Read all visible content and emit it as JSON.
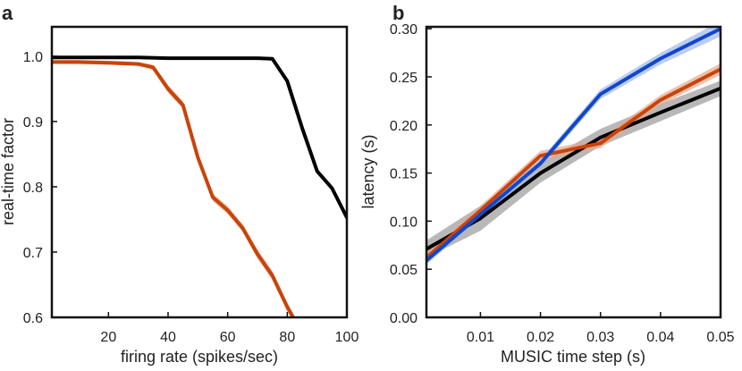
{
  "chart_data": [
    {
      "panel_label": "a",
      "type": "line",
      "xlabel": "firing rate (spikes/sec)",
      "ylabel": "real-time factor",
      "xlim": [
        1,
        100
      ],
      "ylim": [
        0.6,
        1.045
      ],
      "xticks": [
        20,
        40,
        60,
        80,
        100
      ],
      "yticks": [
        0.6,
        0.7,
        0.8,
        0.9,
        1.0
      ],
      "xtick_labels": [
        "20",
        "40",
        "60",
        "80",
        "100"
      ],
      "ytick_labels": [
        "0.6",
        "0.7",
        "0.8",
        "0.9",
        "1.0"
      ],
      "grid": false,
      "series": [
        {
          "name": "black",
          "color": "#000000",
          "band_color": "#888888",
          "x": [
            1,
            10,
            20,
            30,
            40,
            50,
            60,
            70,
            75,
            80,
            85,
            90,
            95,
            100
          ],
          "y": [
            0.998,
            0.998,
            0.998,
            0.998,
            0.997,
            0.997,
            0.997,
            0.997,
            0.996,
            0.962,
            0.89,
            0.824,
            0.798,
            0.753
          ],
          "err": [
            0.002,
            0.002,
            0.002,
            0.002,
            0.002,
            0.002,
            0.002,
            0.002,
            0.002,
            0.004,
            0.005,
            0.004,
            0.004,
            0.004
          ]
        },
        {
          "name": "orange",
          "color": "#c8440a",
          "band_color": "#e8a58a",
          "x": [
            1,
            10,
            20,
            30,
            35,
            40,
            45,
            50,
            55,
            60,
            65,
            70,
            75,
            80,
            82
          ],
          "y": [
            0.991,
            0.991,
            0.99,
            0.988,
            0.983,
            0.95,
            0.925,
            0.845,
            0.784,
            0.764,
            0.737,
            0.697,
            0.664,
            0.616,
            0.6
          ],
          "err": [
            0.003,
            0.003,
            0.003,
            0.003,
            0.004,
            0.006,
            0.006,
            0.006,
            0.006,
            0.006,
            0.006,
            0.007,
            0.007,
            0.007,
            0.006
          ]
        }
      ]
    },
    {
      "panel_label": "b",
      "type": "line",
      "xlabel": "MUSIC time step (s)",
      "ylabel": "latency (s)",
      "xlim": [
        0.001,
        0.05
      ],
      "ylim": [
        0.0,
        0.302
      ],
      "xticks": [
        0.01,
        0.02,
        0.03,
        0.04,
        0.05
      ],
      "yticks": [
        0.0,
        0.05,
        0.1,
        0.15,
        0.2,
        0.25,
        0.3
      ],
      "xtick_labels": [
        "0.01",
        "0.02",
        "0.03",
        "0.04",
        "0.05"
      ],
      "ytick_labels": [
        "0.00",
        "0.05",
        "0.10",
        "0.15",
        "0.20",
        "0.25",
        "0.30"
      ],
      "grid": false,
      "series": [
        {
          "name": "black",
          "color": "#000000",
          "band_color": "#9a9a9a",
          "x": [
            0.001,
            0.01,
            0.02,
            0.03,
            0.04,
            0.05
          ],
          "y": [
            0.071,
            0.103,
            0.15,
            0.187,
            0.213,
            0.238
          ],
          "err": [
            0.009,
            0.013,
            0.01,
            0.009,
            0.009,
            0.008
          ]
        },
        {
          "name": "orange",
          "color": "#c8440a",
          "band_color": "#e8a58a",
          "x": [
            0.001,
            0.01,
            0.02,
            0.03,
            0.04,
            0.05
          ],
          "y": [
            0.062,
            0.111,
            0.168,
            0.181,
            0.226,
            0.258
          ],
          "err": [
            0.005,
            0.005,
            0.005,
            0.005,
            0.005,
            0.006
          ]
        },
        {
          "name": "blue",
          "color": "#1147c9",
          "band_color": "#9fb7ee",
          "x": [
            0.001,
            0.01,
            0.02,
            0.03,
            0.04,
            0.05
          ],
          "y": [
            0.059,
            0.107,
            0.16,
            0.232,
            0.269,
            0.3
          ],
          "err": [
            0.004,
            0.004,
            0.004,
            0.005,
            0.006,
            0.008
          ]
        }
      ]
    }
  ]
}
